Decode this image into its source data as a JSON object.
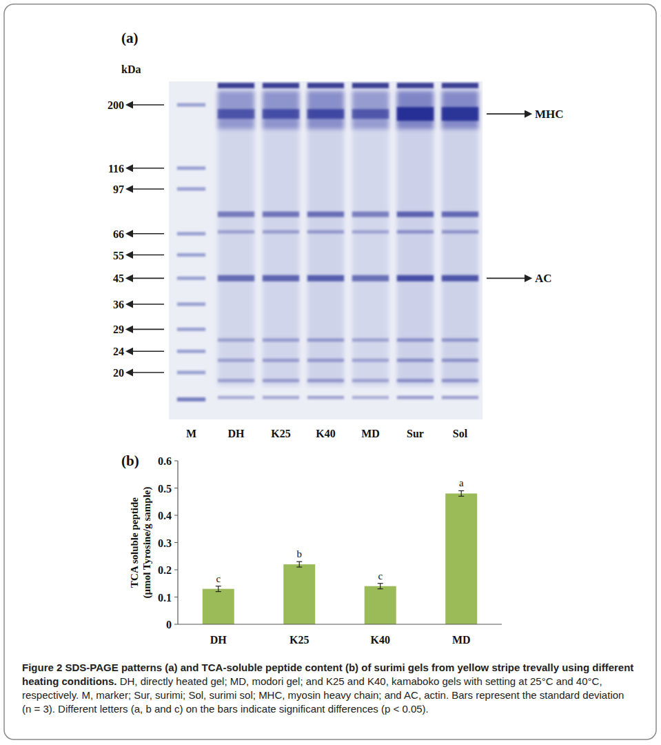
{
  "gel": {
    "panel": "(a)",
    "unit": "kDa",
    "markers": [
      200,
      116,
      97,
      66,
      55,
      45,
      36,
      29,
      24,
      20
    ],
    "lanes": [
      "M",
      "DH",
      "K25",
      "K40",
      "MD",
      "Sur",
      "Sol"
    ],
    "bands": [
      {
        "label": "MHC",
        "kda": 185
      },
      {
        "label": "AC",
        "kda": 45
      }
    ]
  },
  "chart_data": {
    "type": "bar",
    "panel": "(b)",
    "y_label": [
      "TCA soluble peptide",
      "(µmol Tyrosine/g sample)"
    ],
    "categories": [
      "DH",
      "K25",
      "K40",
      "MD"
    ],
    "values": [
      0.13,
      0.22,
      0.14,
      0.48
    ],
    "errors": [
      0.01,
      0.01,
      0.01,
      0.01
    ],
    "letters": [
      "c",
      "b",
      "c",
      "a"
    ],
    "color": "#9bbb59",
    "ylim": [
      0,
      0.6
    ],
    "yticks": [
      0,
      0.1,
      0.2,
      0.3,
      0.4,
      0.5,
      0.6
    ],
    "grid": false
  },
  "caption": {
    "title": "Figure 2 SDS-PAGE patterns (a) and TCA-soluble peptide content (b) of surimi gels from yellow stripe trevally using different heating conditions.",
    "text": "DH, directly heated gel; MD, modori gel; and K25 and K40, kamaboko gels with setting at 25°C and 40°C, respectively. M, marker; Sur, surimi; Sol, surimi sol; MHC, myosin heavy chain; and AC, actin. Bars represent the standard deviation (n = 3). Different letters (a, b and c) on the bars indicate significant differences (p < 0.05)."
  }
}
